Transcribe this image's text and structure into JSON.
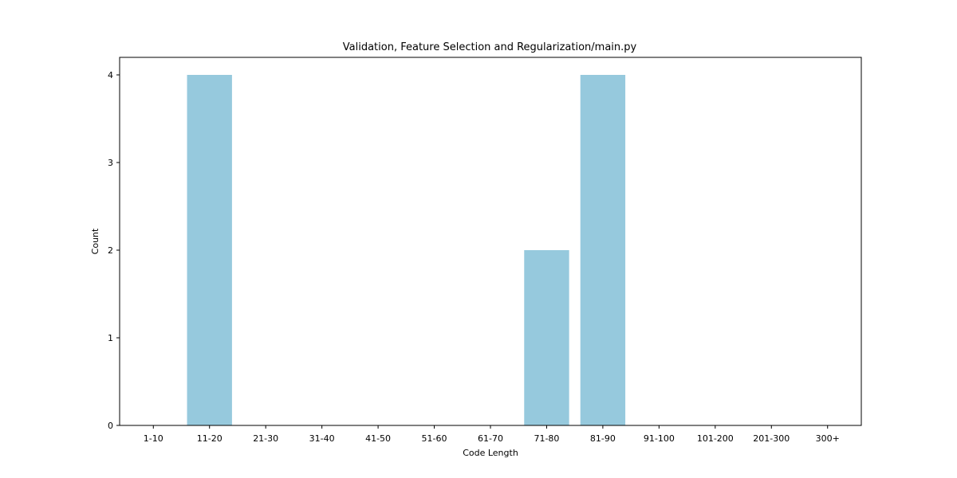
{
  "chart_data": {
    "type": "bar",
    "title": "Validation, Feature Selection and Regularization/main.py",
    "xlabel": "Code Length",
    "ylabel": "Count",
    "categories": [
      "1-10",
      "11-20",
      "21-30",
      "31-40",
      "41-50",
      "51-60",
      "61-70",
      "71-80",
      "81-90",
      "91-100",
      "101-200",
      "201-300",
      "300+"
    ],
    "values": [
      0,
      4,
      0,
      0,
      0,
      0,
      0,
      2,
      4,
      0,
      0,
      0,
      0
    ],
    "ylim": [
      0,
      4.2
    ],
    "yticks": [
      "0",
      "1",
      "2",
      "3",
      "4"
    ],
    "bar_color": "#96c9dd",
    "grid": false,
    "legend": "none"
  }
}
